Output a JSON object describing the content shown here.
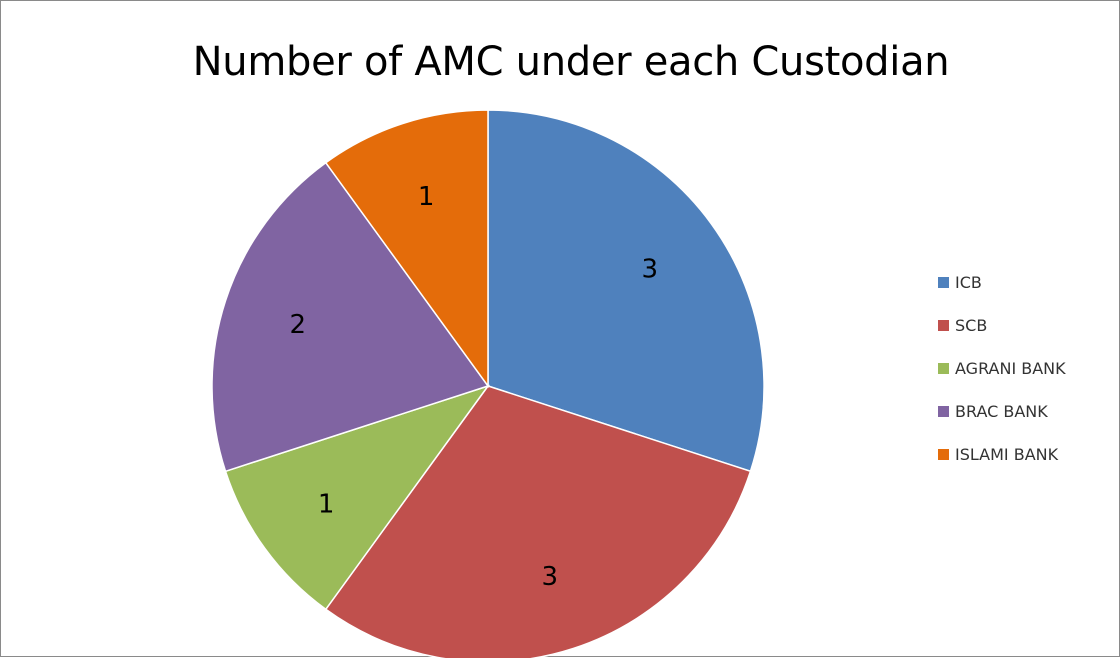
{
  "chart_data": {
    "type": "pie",
    "title": "Number of AMC under each Custodian",
    "categories": [
      "ICB",
      "SCB",
      "AGRANI BANK",
      "BRAC BANK",
      "ISLAMI BANK"
    ],
    "values": [
      3,
      3,
      1,
      2,
      1
    ],
    "data_labels": [
      "3",
      "3",
      "1",
      "2",
      "1"
    ],
    "colors": [
      "#4F81BD",
      "#C0504D",
      "#9BBB59",
      "#8064A2",
      "#E46C0A"
    ],
    "start_angle_deg": 0,
    "direction": "clockwise",
    "legend_position": "right"
  }
}
